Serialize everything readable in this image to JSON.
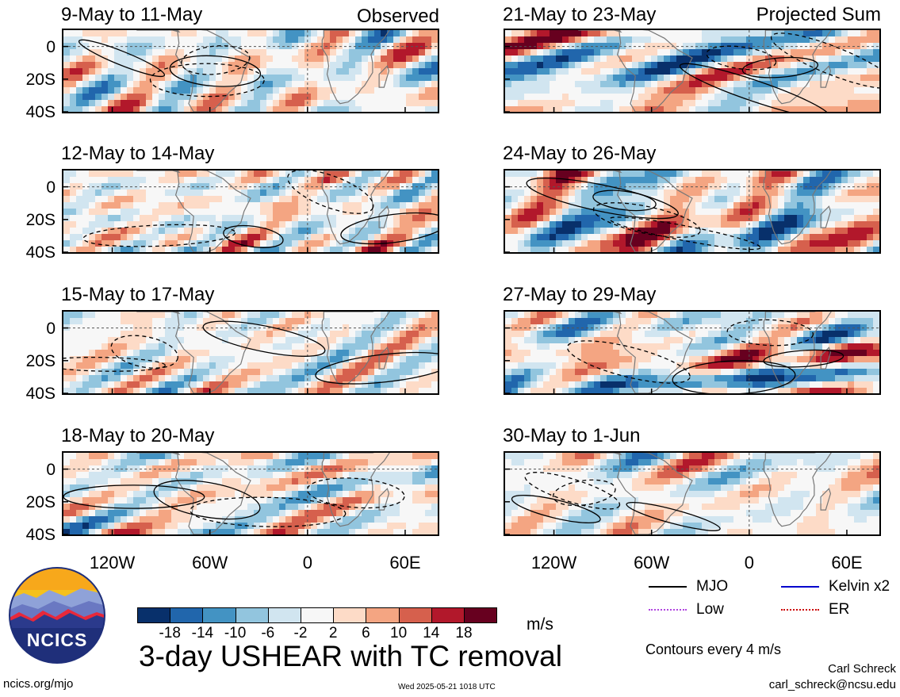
{
  "chart_data": [
    {
      "type": "heatmap",
      "title": "9-May to 11-May",
      "side_label": "Observed",
      "column": "observed",
      "row": 0,
      "xlim": [
        -150,
        80
      ],
      "ylim": [
        -40,
        10
      ]
    },
    {
      "type": "heatmap",
      "title": "12-May to 14-May",
      "side_label": "",
      "column": "observed",
      "row": 1,
      "xlim": [
        -150,
        80
      ],
      "ylim": [
        -40,
        10
      ]
    },
    {
      "type": "heatmap",
      "title": "15-May to 17-May",
      "side_label": "",
      "column": "observed",
      "row": 2,
      "xlim": [
        -150,
        80
      ],
      "ylim": [
        -40,
        10
      ]
    },
    {
      "type": "heatmap",
      "title": "18-May to 20-May",
      "side_label": "",
      "column": "observed",
      "row": 3,
      "xlim": [
        -150,
        80
      ],
      "ylim": [
        -40,
        10
      ]
    },
    {
      "type": "heatmap",
      "title": "21-May to 23-May",
      "side_label": "Projected Sum",
      "column": "projected",
      "row": 0,
      "xlim": [
        -150,
        80
      ],
      "ylim": [
        -40,
        10
      ]
    },
    {
      "type": "heatmap",
      "title": "24-May to 26-May",
      "side_label": "",
      "column": "projected",
      "row": 1,
      "xlim": [
        -150,
        80
      ],
      "ylim": [
        -40,
        10
      ]
    },
    {
      "type": "heatmap",
      "title": "27-May to 29-May",
      "side_label": "",
      "column": "projected",
      "row": 2,
      "xlim": [
        -150,
        80
      ],
      "ylim": [
        -40,
        10
      ]
    },
    {
      "type": "heatmap",
      "title": "30-May to 1-Jun",
      "side_label": "",
      "column": "projected",
      "row": 3,
      "xlim": [
        -150,
        80
      ],
      "ylim": [
        -40,
        10
      ]
    }
  ],
  "axes": {
    "lat_ticks": [
      "0",
      "20S",
      "40S"
    ],
    "lat_values": [
      0,
      -20,
      -40
    ],
    "lon_ticks": [
      "120W",
      "60W",
      "0",
      "60E"
    ],
    "lon_values": [
      -120,
      -60,
      0,
      60
    ]
  },
  "colorbar": {
    "labels": [
      "-18",
      "-14",
      "-10",
      "-6",
      "-2",
      "2",
      "6",
      "10",
      "14",
      "18"
    ],
    "colors": [
      "#08306b",
      "#2166ac",
      "#4393c3",
      "#92c5de",
      "#d1e5f0",
      "#f7f7f7",
      "#fddbc7",
      "#f4a582",
      "#d6604d",
      "#b2182b",
      "#67001f"
    ],
    "units": "m/s"
  },
  "legend": {
    "items": [
      {
        "label": "MJO",
        "color": "#000000"
      },
      {
        "label": "Kelvin x2",
        "color": "#0000cc"
      },
      {
        "label": "Low",
        "color": "#b044e0"
      },
      {
        "label": "ER",
        "color": "#cc0000"
      }
    ],
    "contour_note": "Contours every 4 m/s"
  },
  "main_title": "3-day USHEAR with TC removal",
  "logo_text": "NCICS",
  "footer": {
    "left": "ncics.org/mjo",
    "center": "Wed 2025-05-21 1018 UTC",
    "author": "Carl Schreck",
    "email": "carl_schreck@ncsu.edu"
  }
}
